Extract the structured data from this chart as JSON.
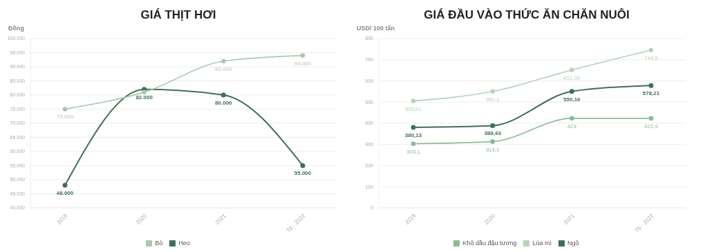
{
  "chart_data": [
    {
      "type": "line",
      "title": "GIÁ THỊT HƠI",
      "ylabel": "Đồng",
      "categories": [
        "2019",
        "2020",
        "2021",
        "T6 - 2022"
      ],
      "series": [
        {
          "name": "Heo",
          "color": "#3f6f58",
          "values": [
            48000,
            82000,
            80000,
            55000
          ],
          "value_labels": [
            "48.000",
            "82.000",
            "80.000",
            "55.000"
          ]
        },
        {
          "name": "Bò",
          "color": "#a9c9ae",
          "values": [
            75000,
            81000,
            92000,
            94000
          ],
          "value_labels": [
            "75.000",
            null,
            "92.000",
            "94.000"
          ]
        }
      ],
      "ylim": [
        40000,
        100000
      ],
      "yticks": [
        {
          "value": 40000,
          "label": "40.000"
        },
        {
          "value": 45000,
          "label": "45.000"
        },
        {
          "value": 50000,
          "label": "50.000"
        },
        {
          "value": 55000,
          "label": "55.000"
        },
        {
          "value": 60000,
          "label": "60.000"
        },
        {
          "value": 65000,
          "label": "65.000"
        },
        {
          "value": 70000,
          "label": "70.000"
        },
        {
          "value": 75000,
          "label": "75.000"
        },
        {
          "value": 80000,
          "label": "80.000"
        },
        {
          "value": 85000,
          "label": "85.000"
        },
        {
          "value": 90000,
          "label": "90.000"
        },
        {
          "value": 95000,
          "label": "95.000"
        },
        {
          "value": 100000,
          "label": "100.000"
        }
      ],
      "grid": "y",
      "legend": "bottom",
      "marker": "circle",
      "line_style": "solid"
    },
    {
      "type": "line",
      "title": "GIÁ ĐẦU VÀO THỨC ĂN CHĂN NUÔI",
      "ylabel": "USD/ 100 tấn",
      "categories": [
        "2019",
        "2020",
        "2021",
        "T6 - 2022"
      ],
      "series": [
        {
          "name": "Ngô",
          "color": "#3f6f58",
          "values": [
            380.13,
            388.43,
            550.16,
            578.21
          ],
          "value_labels": [
            "380,13",
            "388,43",
            "550,16",
            "578,21"
          ]
        },
        {
          "name": "Lúa mì",
          "color": "#b6d3ba",
          "values": [
            505.01,
            550.2,
            651.59,
            745.5
          ],
          "value_labels": [
            "505,01",
            "550,2",
            "651,59",
            "745,5"
          ]
        },
        {
          "name": "Khô dầu đậu tương",
          "color": "#89bb93",
          "values": [
            303.1,
            313.1,
            423,
            422.9
          ],
          "value_labels": [
            "303,1",
            "313,1",
            "423",
            "422,9"
          ]
        }
      ],
      "ylim": [
        0,
        800
      ],
      "yticks": [
        0,
        100,
        200,
        300,
        400,
        500,
        600,
        700,
        800
      ],
      "grid": "y",
      "legend": "bottom",
      "marker": "circle",
      "line_style": "solid"
    }
  ]
}
